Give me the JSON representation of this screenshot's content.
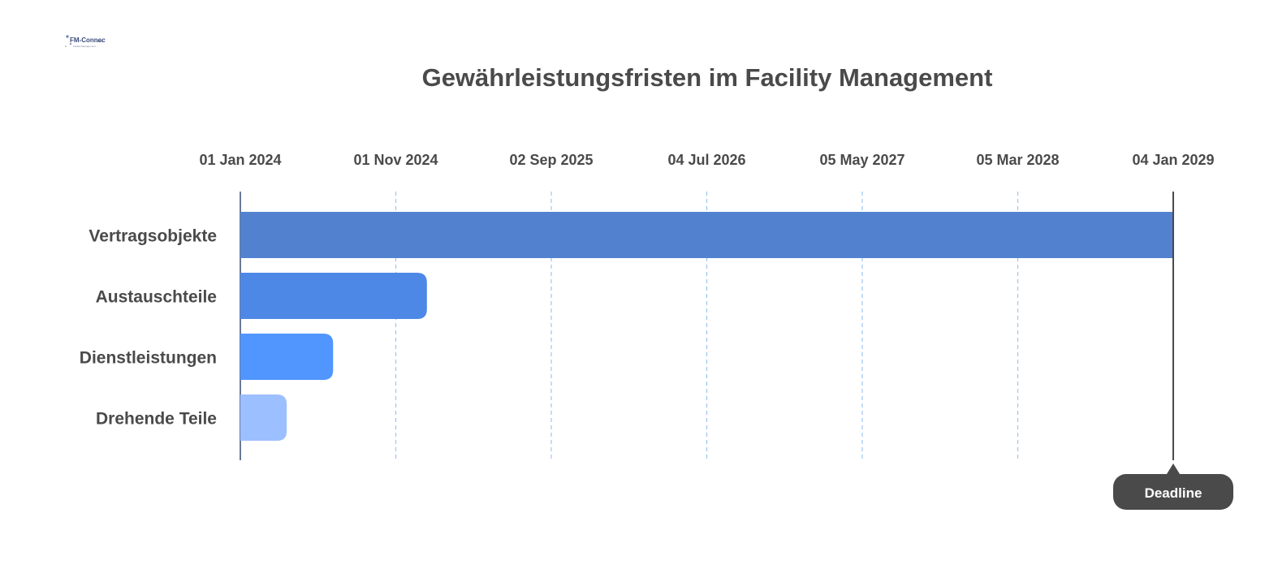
{
  "logo": {
    "text": "FM-Connect.com",
    "subtext": "Facility Management",
    "icon": "fm-connect-logo"
  },
  "chart_data": {
    "type": "bar",
    "orientation": "horizontal",
    "title": "Gewährleistungsfristen im Facility Management",
    "xlabel": "",
    "ylabel": "",
    "x_axis_type": "date",
    "xlim": [
      "2024-01-01",
      "2029-01-04"
    ],
    "x_ticks": [
      "01 Jan 2024",
      "01 Nov 2024",
      "02 Sep 2025",
      "04 Jul 2026",
      "05 May 2027",
      "05 Mar 2028",
      "04 Jan 2029"
    ],
    "grid": true,
    "categories": [
      "Vertragsobjekte",
      "Austauschteile",
      "Dienstleistungen",
      "Drehende Teile"
    ],
    "start": [
      "2024-01-01",
      "2024-01-01",
      "2024-01-01",
      "2024-01-01"
    ],
    "end": [
      "2029-01-04",
      "2025-01-01",
      "2024-07-01",
      "2024-04-01"
    ],
    "colors": [
      "#5282CF",
      "#4E88E6",
      "#5196FF",
      "#9CBFFF"
    ],
    "deadline": {
      "label": "Deadline",
      "date": "2029-01-04",
      "color": "#4a4a4a"
    },
    "gridline_color": "#9ec4ef"
  }
}
